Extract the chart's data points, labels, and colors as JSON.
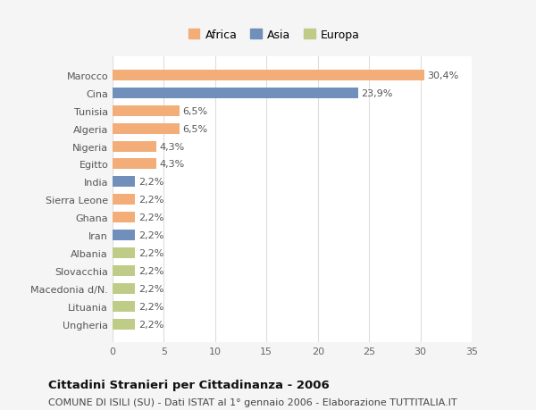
{
  "countries": [
    "Ungheria",
    "Lituania",
    "Macedonia d/N.",
    "Slovacchia",
    "Albania",
    "Iran",
    "Ghana",
    "Sierra Leone",
    "India",
    "Egitto",
    "Nigeria",
    "Algeria",
    "Tunisia",
    "Cina",
    "Marocco"
  ],
  "values": [
    2.2,
    2.2,
    2.2,
    2.2,
    2.2,
    2.2,
    2.2,
    2.2,
    2.2,
    4.3,
    4.3,
    6.5,
    6.5,
    23.9,
    30.4
  ],
  "labels": [
    "2,2%",
    "2,2%",
    "2,2%",
    "2,2%",
    "2,2%",
    "2,2%",
    "2,2%",
    "2,2%",
    "2,2%",
    "4,3%",
    "4,3%",
    "6,5%",
    "6,5%",
    "23,9%",
    "30,4%"
  ],
  "continents": [
    "Europa",
    "Europa",
    "Europa",
    "Europa",
    "Europa",
    "Asia",
    "Africa",
    "Africa",
    "Asia",
    "Africa",
    "Africa",
    "Africa",
    "Africa",
    "Asia",
    "Africa"
  ],
  "colors": {
    "Africa": "#F2AD78",
    "Asia": "#7090BB",
    "Europa": "#BFCC88"
  },
  "legend_order": [
    "Africa",
    "Asia",
    "Europa"
  ],
  "xlim": [
    0,
    35
  ],
  "xticks": [
    0,
    5,
    10,
    15,
    20,
    25,
    30,
    35
  ],
  "title": "Cittadini Stranieri per Cittadinanza - 2006",
  "subtitle": "COMUNE DI ISILI (SU) - Dati ISTAT al 1° gennaio 2006 - Elaborazione TUTTITALIA.IT",
  "background_color": "#f5f5f5",
  "plot_background": "#ffffff",
  "grid_color": "#dddddd",
  "bar_height": 0.6,
  "label_fontsize": 8,
  "tick_fontsize": 8,
  "title_fontsize": 9.5,
  "subtitle_fontsize": 8
}
